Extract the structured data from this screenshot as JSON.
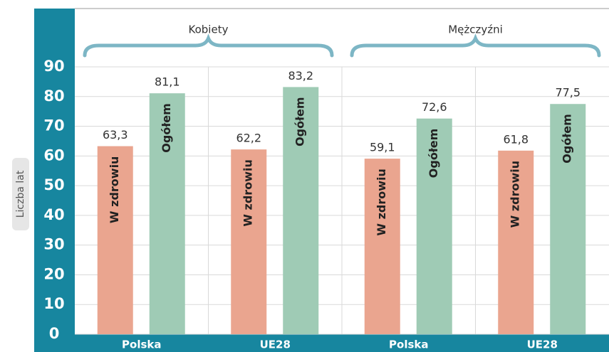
{
  "chart_data": {
    "type": "bar",
    "y_label": "Liczba lat",
    "groups": [
      "Kobiety",
      "Mężczyźni"
    ],
    "categories": [
      "Polska",
      "UE28",
      "Polska",
      "UE28"
    ],
    "series": [
      {
        "name": "W zdrowiu",
        "color": "#eaa58f",
        "values": [
          63.3,
          62.2,
          59.1,
          61.8
        ],
        "value_labels": [
          "63,3",
          "62,2",
          "59,1",
          "61,8"
        ]
      },
      {
        "name": "Ogółem",
        "color": "#9fcbb5",
        "values": [
          81.1,
          83.2,
          72.6,
          77.5
        ],
        "value_labels": [
          "81,1",
          "83,2",
          "72,6",
          "77,5"
        ]
      }
    ],
    "ylim": [
      0,
      90
    ],
    "yticks": [
      0,
      10,
      20,
      30,
      40,
      50,
      60,
      70,
      80,
      90
    ],
    "grid": true
  }
}
